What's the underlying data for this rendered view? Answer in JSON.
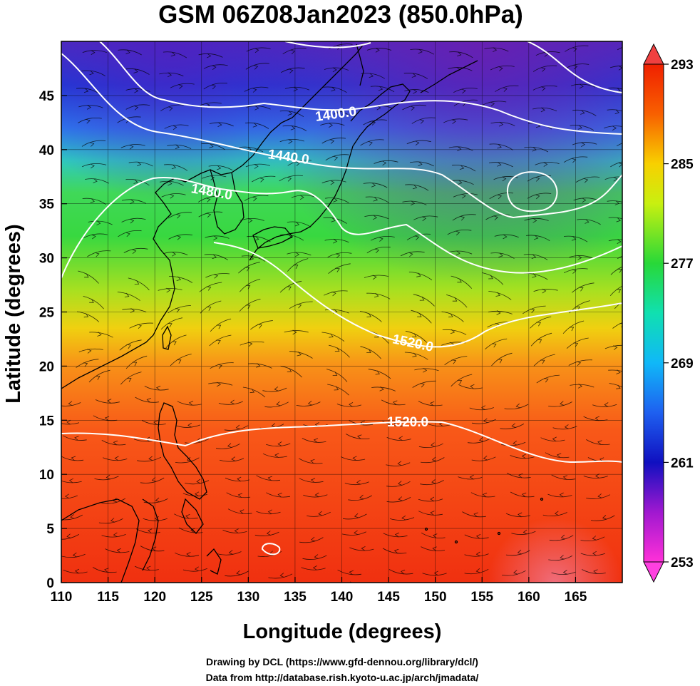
{
  "title": "GSM 06Z08Jan2023 (850.0hPa)",
  "xlabel": "Longitude (degrees)",
  "ylabel": "Latitude  (degrees)",
  "credits": {
    "line1": "Drawing by DCL (https://www.gfd-dennou.org/library/dcl/)",
    "line2": "Data from http://database.rish.kyoto-u.ac.jp/arch/jmadata/"
  },
  "map": {
    "lon_range": [
      110,
      170
    ],
    "lat_range": [
      0,
      50
    ],
    "x_ticks": [
      "110",
      "115",
      "120",
      "125",
      "130",
      "135",
      "140",
      "145",
      "150",
      "155",
      "160",
      "165"
    ],
    "y_ticks": [
      "0",
      "5",
      "10",
      "15",
      "20",
      "25",
      "30",
      "35",
      "40",
      "45"
    ],
    "grid": true
  },
  "colorbar": {
    "range": [
      253,
      293
    ],
    "tick_labels": [
      "253",
      "261",
      "269",
      "277",
      "285",
      "293"
    ],
    "colors": [
      "#ff30d8",
      "#8010c8",
      "#1020c8",
      "#1a5ef0",
      "#10b8f8",
      "#10e8c8",
      "#28d838",
      "#98e820",
      "#f8f000",
      "#f89800",
      "#f85000",
      "#f02000"
    ]
  },
  "contour_labels": [
    "1400.0",
    "1440.0",
    "1480.0",
    "1520.0",
    "1520.0"
  ],
  "colors": {
    "contour": "#ffffff",
    "streamline": "#000000",
    "coastline": "#000000"
  }
}
